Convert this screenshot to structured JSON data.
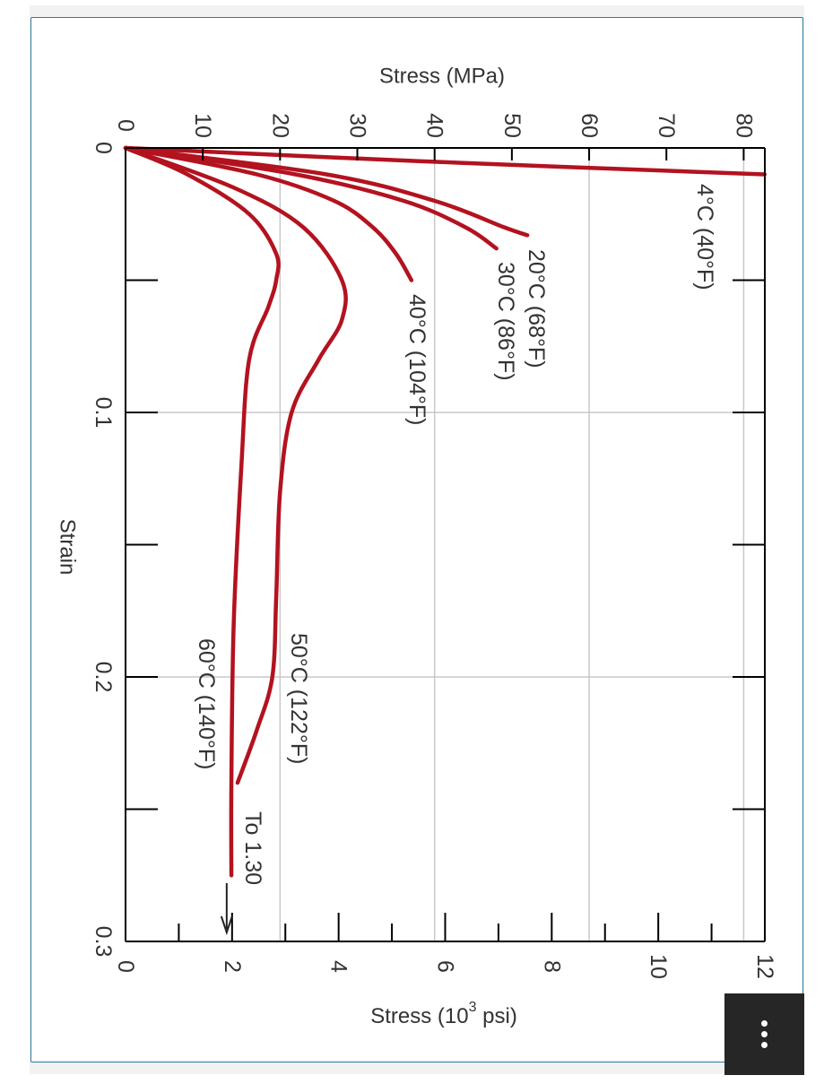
{
  "chart_data": {
    "type": "line",
    "orientation": "rotated-90-clockwise",
    "xlabel": "Strain",
    "ylabel_top": "Stress (MPa)",
    "ylabel_bottom_prefix": "Stress (10",
    "ylabel_bottom_exp": "3",
    "ylabel_bottom_suffix": " psi)",
    "xlim": [
      0,
      0.3
    ],
    "ylim_psi": [
      0,
      12
    ],
    "ylim_mpa": [
      0,
      82.7
    ],
    "x_ticks": [
      "0",
      "0.1",
      "0.2",
      "0.3"
    ],
    "mpa_ticks": [
      "0",
      "10",
      "20",
      "30",
      "40",
      "50",
      "60",
      "70",
      "80"
    ],
    "psi_ticks": [
      "0",
      "2",
      "4",
      "6",
      "8",
      "10",
      "12"
    ],
    "series": [
      {
        "name": "4°C (40°F)",
        "x": [
          0,
          0.005,
          0.01
        ],
        "y_mpa": [
          0,
          38,
          82.7
        ]
      },
      {
        "name": "20°C (68°F)",
        "x": [
          0,
          0.01,
          0.02,
          0.03,
          0.033
        ],
        "y_mpa": [
          0,
          26,
          40,
          49,
          52
        ]
      },
      {
        "name": "30°C (86°F)",
        "x": [
          0,
          0.01,
          0.02,
          0.03,
          0.038
        ],
        "y_mpa": [
          0,
          22,
          36,
          44,
          48
        ]
      },
      {
        "name": "40°C (104°F)",
        "x": [
          0,
          0.01,
          0.02,
          0.03,
          0.04,
          0.05
        ],
        "y_mpa": [
          0,
          17,
          27,
          32,
          35,
          37
        ]
      },
      {
        "name": "50°C (122°F)",
        "x": [
          0,
          0.015,
          0.03,
          0.05,
          0.065,
          0.08,
          0.1,
          0.13,
          0.17,
          0.2,
          0.22,
          0.24
        ],
        "y_mpa": [
          0,
          14,
          23,
          28,
          28,
          25,
          21.5,
          20,
          19.5,
          19,
          17,
          14.5
        ]
      },
      {
        "name": "60°C (140°F)",
        "x": [
          0,
          0.01,
          0.025,
          0.04,
          0.05,
          0.06,
          0.08,
          0.12,
          0.18,
          0.24,
          0.275
        ],
        "y_mpa": [
          0,
          8,
          16,
          19.5,
          19.5,
          18.5,
          16,
          15,
          14,
          13.7,
          13.7
        ]
      }
    ],
    "annotation": "To 1.30",
    "line_color": "#b3121f",
    "grid": true
  },
  "ui": {
    "menu_icon": "more-vertical-icon"
  }
}
